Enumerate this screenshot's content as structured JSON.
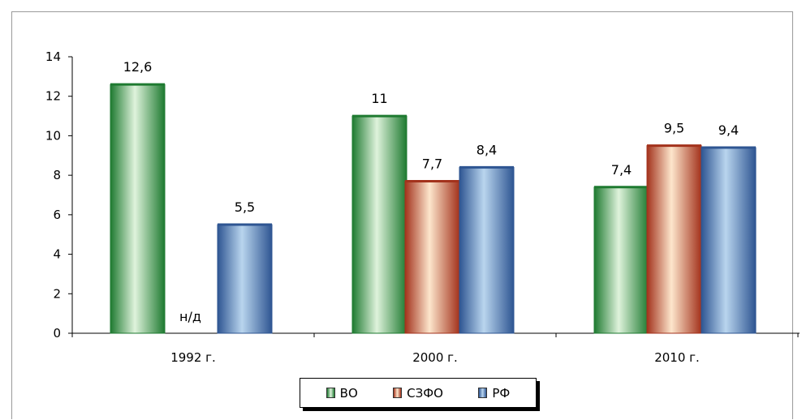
{
  "chart_data": {
    "type": "bar",
    "categories": [
      "1992 г.",
      "2000 г.",
      "2010 г."
    ],
    "series": [
      {
        "name": "ВО",
        "values": [
          12.6,
          11,
          7.4
        ],
        "labels": [
          "12,6",
          "11",
          "7,4"
        ],
        "color": "#1e7a30",
        "light": "#dff3dc"
      },
      {
        "name": "СЗФО",
        "values": [
          null,
          7.7,
          9.5
        ],
        "labels": [
          "н/д",
          "7,7",
          "9,5"
        ],
        "color": "#a3321c",
        "light": "#fde6cc"
      },
      {
        "name": "РФ",
        "values": [
          5.5,
          8.4,
          9.4
        ],
        "labels": [
          "5,5",
          "8,4",
          "9,4"
        ],
        "color": "#2e5592",
        "light": "#b9d5ee"
      }
    ],
    "yticks": [
      "0",
      "2",
      "4",
      "6",
      "8",
      "10",
      "12",
      "14"
    ],
    "ylim": [
      0,
      14
    ],
    "legend_position": "bottom"
  }
}
